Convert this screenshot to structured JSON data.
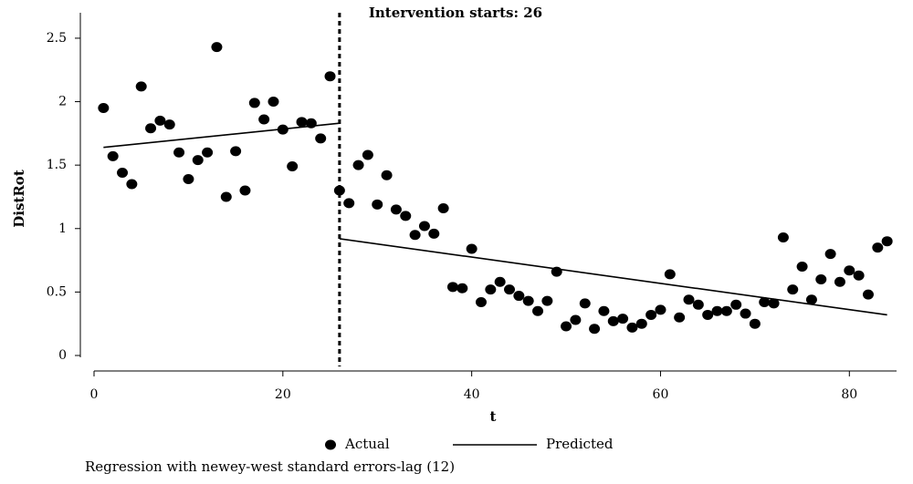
{
  "chart_data": {
    "type": "scatter",
    "title": "",
    "xlabel": "t",
    "ylabel": "DistRot",
    "xlim": [
      0,
      85
    ],
    "ylim": [
      0,
      2.6
    ],
    "xticks": [
      0,
      20,
      40,
      60,
      80
    ],
    "yticks": [
      0,
      0.5,
      1,
      1.5,
      2,
      2.5
    ],
    "ytick_labels": [
      "0",
      "0.5",
      "1",
      "1.5",
      "2",
      "2.5"
    ],
    "grid": false,
    "legend_position": "bottom",
    "intervention": {
      "t": 26,
      "label": "Intervention starts: 26"
    },
    "note": "Regression with newey-west standard errors-lag (12)",
    "series": [
      {
        "name": "Actual",
        "kind": "points",
        "x": [
          1,
          2,
          3,
          4,
          5,
          6,
          7,
          8,
          9,
          10,
          11,
          12,
          13,
          14,
          15,
          16,
          17,
          18,
          19,
          20,
          21,
          22,
          23,
          24,
          25,
          26,
          27,
          28,
          29,
          30,
          31,
          32,
          33,
          34,
          35,
          36,
          37,
          38,
          39,
          40,
          41,
          42,
          43,
          44,
          45,
          46,
          47,
          48,
          49,
          50,
          51,
          52,
          53,
          54,
          55,
          56,
          57,
          58,
          59,
          60,
          61,
          62,
          63,
          64,
          65,
          66,
          67,
          68,
          69,
          70,
          71,
          72,
          73,
          74,
          75,
          76,
          77,
          78,
          79,
          80,
          81,
          82,
          83,
          84
        ],
        "y": [
          1.95,
          1.57,
          1.44,
          1.35,
          2.12,
          1.79,
          1.85,
          1.82,
          1.6,
          1.39,
          1.54,
          1.6,
          2.43,
          1.25,
          1.61,
          1.3,
          1.99,
          1.86,
          2.0,
          1.78,
          1.49,
          1.84,
          1.83,
          1.71,
          2.2,
          1.3,
          1.2,
          1.5,
          1.58,
          1.19,
          1.42,
          1.15,
          1.1,
          0.95,
          1.02,
          0.96,
          1.16,
          0.54,
          0.53,
          0.84,
          0.42,
          0.52,
          0.58,
          0.52,
          0.47,
          0.43,
          0.35,
          0.43,
          0.66,
          0.23,
          0.28,
          0.41,
          0.21,
          0.35,
          0.27,
          0.29,
          0.22,
          0.25,
          0.32,
          0.36,
          0.64,
          0.3,
          0.44,
          0.4,
          0.32,
          0.35,
          0.35,
          0.4,
          0.33,
          0.25,
          0.42,
          0.41,
          0.93,
          0.52,
          0.7,
          0.44,
          0.6,
          0.8,
          0.58,
          0.67,
          0.63,
          0.48,
          0.85,
          0.9
        ]
      },
      {
        "name": "Predicted",
        "kind": "line",
        "segments": [
          {
            "x": [
              1,
              26
            ],
            "y": [
              1.64,
              1.83
            ]
          },
          {
            "x": [
              26,
              84
            ],
            "y": [
              0.92,
              0.32
            ]
          }
        ]
      }
    ]
  }
}
